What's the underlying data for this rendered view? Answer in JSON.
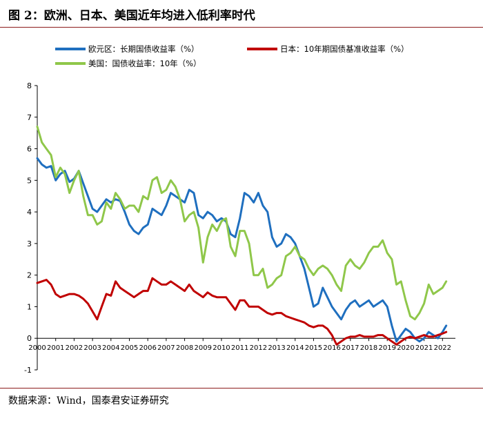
{
  "figure": {
    "title": "图 2：欧洲、日本、美国近年均进入低利率时代",
    "source": "数据来源：Wind，国泰君安证券研究"
  },
  "chart_data": {
    "type": "line",
    "ylim": [
      -1,
      8
    ],
    "yticks": [
      "-1",
      "0",
      "1",
      "2",
      "3",
      "4",
      "5",
      "6",
      "7",
      "8"
    ],
    "xlim": [
      2000,
      2022.7
    ],
    "xticks": [
      "2000",
      "2001",
      "2002",
      "2003",
      "2004",
      "2005",
      "2006",
      "2007",
      "2008",
      "2009",
      "2010",
      "2011",
      "2012",
      "2013",
      "2014",
      "2015",
      "2016",
      "2017",
      "2018",
      "2019",
      "2020",
      "2021",
      "2022"
    ],
    "grid": false,
    "legend_position": "top",
    "series": [
      {
        "name": "欧元区：长期国债收益率（%）",
        "color": "#1f6fbf",
        "x": [
          2000.0,
          2000.25,
          2000.5,
          2000.75,
          2001.0,
          2001.25,
          2001.5,
          2001.75,
          2002.0,
          2002.25,
          2002.5,
          2002.75,
          2003.0,
          2003.25,
          2003.5,
          2003.75,
          2004.0,
          2004.25,
          2004.5,
          2004.75,
          2005.0,
          2005.25,
          2005.5,
          2005.75,
          2006.0,
          2006.25,
          2006.5,
          2006.75,
          2007.0,
          2007.25,
          2007.5,
          2007.75,
          2008.0,
          2008.25,
          2008.5,
          2008.75,
          2009.0,
          2009.25,
          2009.5,
          2009.75,
          2010.0,
          2010.25,
          2010.5,
          2010.75,
          2011.0,
          2011.25,
          2011.5,
          2011.75,
          2012.0,
          2012.25,
          2012.5,
          2012.75,
          2013.0,
          2013.25,
          2013.5,
          2013.75,
          2014.0,
          2014.25,
          2014.5,
          2014.75,
          2015.0,
          2015.25,
          2015.5,
          2015.75,
          2016.0,
          2016.25,
          2016.5,
          2016.75,
          2017.0,
          2017.25,
          2017.5,
          2017.75,
          2018.0,
          2018.25,
          2018.5,
          2018.75,
          2019.0,
          2019.25,
          2019.5,
          2019.75,
          2020.0,
          2020.25,
          2020.5,
          2020.75,
          2021.0,
          2021.25,
          2021.5,
          2021.75,
          2022.0,
          2022.2
        ],
        "y": [
          5.7,
          5.5,
          5.4,
          5.45,
          5.0,
          5.2,
          5.3,
          4.95,
          5.05,
          5.3,
          4.9,
          4.5,
          4.1,
          4.0,
          4.2,
          4.4,
          4.3,
          4.4,
          4.35,
          4.0,
          3.6,
          3.4,
          3.3,
          3.5,
          3.6,
          4.1,
          4.0,
          3.9,
          4.2,
          4.6,
          4.5,
          4.4,
          4.3,
          4.7,
          4.6,
          3.9,
          3.8,
          4.0,
          3.9,
          3.7,
          3.8,
          3.7,
          3.3,
          3.2,
          3.8,
          4.6,
          4.5,
          4.3,
          4.6,
          4.2,
          4.0,
          3.2,
          2.9,
          3.0,
          3.3,
          3.2,
          3.0,
          2.6,
          2.2,
          1.6,
          1.0,
          1.1,
          1.6,
          1.3,
          1.0,
          0.8,
          0.6,
          0.9,
          1.1,
          1.2,
          1.0,
          1.1,
          1.2,
          1.0,
          1.1,
          1.2,
          1.0,
          0.4,
          -0.1,
          0.1,
          0.3,
          0.2,
          0.0,
          -0.1,
          0.0,
          0.2,
          0.1,
          0.0,
          0.2,
          0.4
        ]
      },
      {
        "name": "日本：10年期国债基准收益率（%）",
        "color": "#c00000",
        "x": [
          2000.0,
          2000.25,
          2000.5,
          2000.75,
          2001.0,
          2001.25,
          2001.5,
          2001.75,
          2002.0,
          2002.25,
          2002.5,
          2002.75,
          2003.0,
          2003.25,
          2003.5,
          2003.75,
          2004.0,
          2004.25,
          2004.5,
          2004.75,
          2005.0,
          2005.25,
          2005.5,
          2005.75,
          2006.0,
          2006.25,
          2006.5,
          2006.75,
          2007.0,
          2007.25,
          2007.5,
          2007.75,
          2008.0,
          2008.25,
          2008.5,
          2008.75,
          2009.0,
          2009.25,
          2009.5,
          2009.75,
          2010.0,
          2010.25,
          2010.5,
          2010.75,
          2011.0,
          2011.25,
          2011.5,
          2011.75,
          2012.0,
          2012.25,
          2012.5,
          2012.75,
          2013.0,
          2013.25,
          2013.5,
          2013.75,
          2014.0,
          2014.25,
          2014.5,
          2014.75,
          2015.0,
          2015.25,
          2015.5,
          2015.75,
          2016.0,
          2016.25,
          2016.5,
          2016.75,
          2017.0,
          2017.25,
          2017.5,
          2017.75,
          2018.0,
          2018.25,
          2018.5,
          2018.75,
          2019.0,
          2019.25,
          2019.5,
          2019.75,
          2020.0,
          2020.25,
          2020.5,
          2020.75,
          2021.0,
          2021.25,
          2021.5,
          2021.75,
          2022.0,
          2022.2
        ],
        "y": [
          1.75,
          1.8,
          1.85,
          1.7,
          1.4,
          1.3,
          1.35,
          1.4,
          1.4,
          1.35,
          1.25,
          1.1,
          0.85,
          0.6,
          1.0,
          1.4,
          1.35,
          1.8,
          1.6,
          1.5,
          1.4,
          1.3,
          1.4,
          1.5,
          1.5,
          1.9,
          1.8,
          1.7,
          1.7,
          1.8,
          1.7,
          1.6,
          1.5,
          1.7,
          1.5,
          1.4,
          1.3,
          1.45,
          1.35,
          1.3,
          1.3,
          1.3,
          1.1,
          0.9,
          1.2,
          1.2,
          1.0,
          1.0,
          1.0,
          0.9,
          0.8,
          0.75,
          0.8,
          0.8,
          0.7,
          0.65,
          0.6,
          0.55,
          0.5,
          0.4,
          0.35,
          0.4,
          0.4,
          0.3,
          0.1,
          -0.2,
          -0.1,
          0.0,
          0.05,
          0.05,
          0.1,
          0.05,
          0.05,
          0.05,
          0.1,
          0.1,
          0.0,
          -0.1,
          -0.2,
          -0.1,
          0.0,
          0.05,
          0.0,
          0.05,
          0.1,
          0.05,
          0.05,
          0.1,
          0.15,
          0.2
        ]
      },
      {
        "name": "美国：国债收益率：10年（%）",
        "color": "#8fc74a",
        "x": [
          2000.0,
          2000.25,
          2000.5,
          2000.75,
          2001.0,
          2001.25,
          2001.5,
          2001.75,
          2002.0,
          2002.25,
          2002.5,
          2002.75,
          2003.0,
          2003.25,
          2003.5,
          2003.75,
          2004.0,
          2004.25,
          2004.5,
          2004.75,
          2005.0,
          2005.25,
          2005.5,
          2005.75,
          2006.0,
          2006.25,
          2006.5,
          2006.75,
          2007.0,
          2007.25,
          2007.5,
          2007.75,
          2008.0,
          2008.25,
          2008.5,
          2008.75,
          2009.0,
          2009.25,
          2009.5,
          2009.75,
          2010.0,
          2010.25,
          2010.5,
          2010.75,
          2011.0,
          2011.25,
          2011.5,
          2011.75,
          2012.0,
          2012.25,
          2012.5,
          2012.75,
          2013.0,
          2013.25,
          2013.5,
          2013.75,
          2014.0,
          2014.25,
          2014.5,
          2014.75,
          2015.0,
          2015.25,
          2015.5,
          2015.75,
          2016.0,
          2016.25,
          2016.5,
          2016.75,
          2017.0,
          2017.25,
          2017.5,
          2017.75,
          2018.0,
          2018.25,
          2018.5,
          2018.75,
          2019.0,
          2019.25,
          2019.5,
          2019.75,
          2020.0,
          2020.25,
          2020.5,
          2020.75,
          2021.0,
          2021.25,
          2021.5,
          2021.75,
          2022.0,
          2022.2
        ],
        "y": [
          6.7,
          6.2,
          6.0,
          5.8,
          5.1,
          5.4,
          5.2,
          4.6,
          5.0,
          5.3,
          4.5,
          3.9,
          3.9,
          3.6,
          3.7,
          4.3,
          4.1,
          4.6,
          4.4,
          4.1,
          4.2,
          4.2,
          4.0,
          4.5,
          4.4,
          5.0,
          5.1,
          4.6,
          4.7,
          5.0,
          4.8,
          4.4,
          3.7,
          3.9,
          4.0,
          3.5,
          2.4,
          3.2,
          3.6,
          3.4,
          3.7,
          3.8,
          2.9,
          2.6,
          3.4,
          3.4,
          3.0,
          2.0,
          2.0,
          2.2,
          1.6,
          1.7,
          1.9,
          2.0,
          2.6,
          2.7,
          2.9,
          2.6,
          2.5,
          2.2,
          2.0,
          2.2,
          2.3,
          2.2,
          2.0,
          1.7,
          1.5,
          2.3,
          2.5,
          2.3,
          2.2,
          2.4,
          2.7,
          2.9,
          2.9,
          3.1,
          2.7,
          2.5,
          1.7,
          1.8,
          1.2,
          0.7,
          0.6,
          0.8,
          1.1,
          1.7,
          1.4,
          1.5,
          1.6,
          1.8
        ]
      }
    ]
  }
}
